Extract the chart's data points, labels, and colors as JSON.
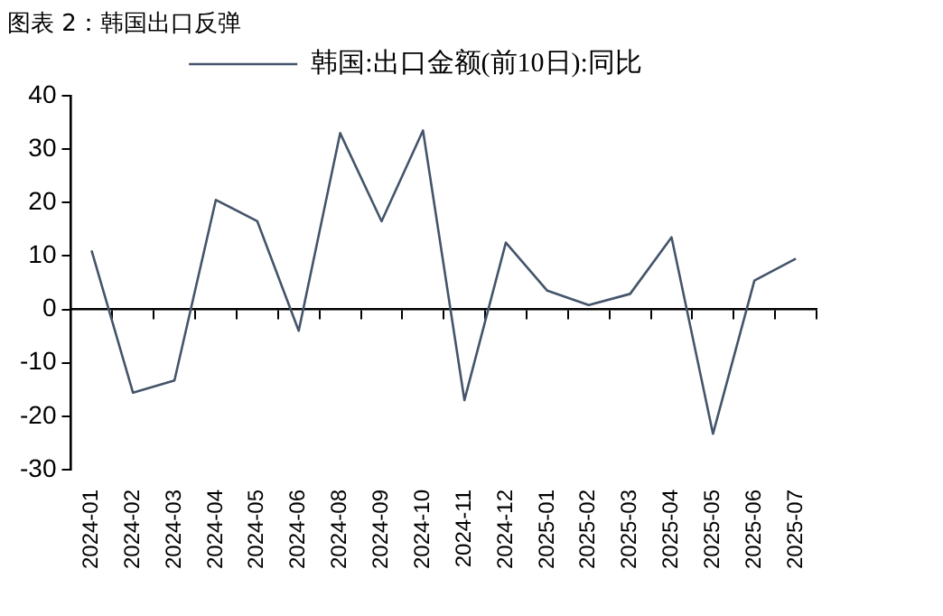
{
  "chart_data": {
    "type": "line",
    "title": "图表 2：韩国出口反弹",
    "categories": [
      "2024-01",
      "2024-02",
      "2024-03",
      "2024-04",
      "2024-05",
      "2024-06",
      "2024-08",
      "2024-09",
      "2024-10",
      "2024-11",
      "2024-12",
      "2025-01",
      "2025-02",
      "2025-03",
      "2025-04",
      "2025-05",
      "2025-06",
      "2025-07"
    ],
    "series": [
      {
        "name": "韩国:出口金额(前10日):同比",
        "color": "#44546a",
        "values": [
          11,
          -15.6,
          -13.3,
          20.5,
          16.5,
          -4,
          33,
          16.5,
          33.5,
          -17,
          12.5,
          3.5,
          0.8,
          2.9,
          13.5,
          -23.3,
          5.4,
          9.5
        ]
      }
    ],
    "ylim": [
      -30,
      40
    ],
    "yticks": [
      -30,
      -20,
      -10,
      0,
      10,
      20,
      30,
      40
    ],
    "legend": "top",
    "marker": "none",
    "line_style": "solid"
  }
}
